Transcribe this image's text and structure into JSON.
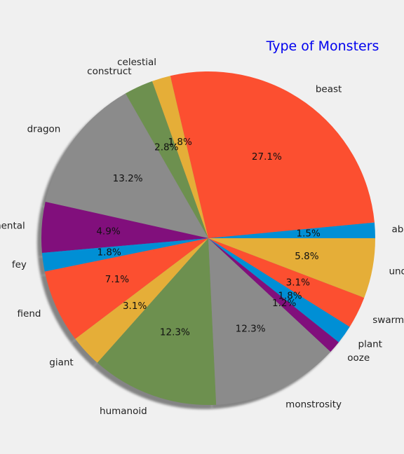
{
  "chart_data": {
    "type": "pie",
    "title": "Type of Monsters",
    "start_angle_deg": 0,
    "direction": "counterclockwise",
    "shadow": true,
    "slices": [
      {
        "label": "aberration",
        "value": 1.5,
        "pct_label": "1.5%",
        "color": "#008fd5"
      },
      {
        "label": "beast",
        "value": 27.1,
        "pct_label": "27.1%",
        "color": "#fc4f30"
      },
      {
        "label": "celestial",
        "value": 1.8,
        "pct_label": "1.8%",
        "color": "#e5ae38"
      },
      {
        "label": "construct",
        "value": 2.8,
        "pct_label": "2.8%",
        "color": "#6d904f"
      },
      {
        "label": "dragon",
        "value": 13.2,
        "pct_label": "13.2%",
        "color": "#8b8b8b"
      },
      {
        "label": "elemental",
        "value": 4.9,
        "pct_label": "4.9%",
        "color": "#810f7c"
      },
      {
        "label": "fey",
        "value": 1.8,
        "pct_label": "1.8%",
        "color": "#008fd5"
      },
      {
        "label": "fiend",
        "value": 7.1,
        "pct_label": "7.1%",
        "color": "#fc4f30"
      },
      {
        "label": "giant",
        "value": 3.1,
        "pct_label": "3.1%",
        "color": "#e5ae38"
      },
      {
        "label": "humanoid",
        "value": 12.3,
        "pct_label": "12.3%",
        "color": "#6d904f"
      },
      {
        "label": "monstrosity",
        "value": 12.3,
        "pct_label": "12.3%",
        "color": "#8b8b8b"
      },
      {
        "label": "ooze",
        "value": 1.2,
        "pct_label": "1.2%",
        "color": "#810f7c"
      },
      {
        "label": "plant",
        "value": 1.8,
        "pct_label": "1.8%",
        "color": "#008fd5"
      },
      {
        "label": "swarm",
        "value": 3.1,
        "pct_label": "3.1%",
        "color": "#fc4f30"
      },
      {
        "label": "undead",
        "value": 5.8,
        "pct_label": "5.8%",
        "color": "#e5ae38"
      }
    ]
  }
}
